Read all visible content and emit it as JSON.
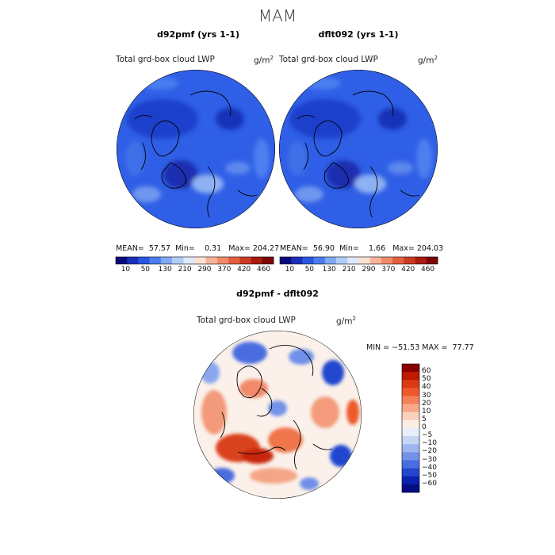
{
  "figure": {
    "season": "MAM"
  },
  "panels": [
    {
      "title": "d92pmf (yrs 1-1)",
      "field": "Total grd-box cloud LWP",
      "units": "g/m",
      "units_exp": "2",
      "mean_label": "MEAN=",
      "mean": "57.57",
      "min_label": "Min=",
      "min": "0.31",
      "max_label": "Max=",
      "max": "204.27"
    },
    {
      "title": "dflt092 (yrs 1-1)",
      "field": "Total grd-box cloud LWP",
      "units": "g/m",
      "units_exp": "2",
      "mean_label": "MEAN=",
      "mean": "56.90",
      "min_label": "Min=",
      "min": "1.66",
      "max_label": "Max=",
      "max": "204.03"
    }
  ],
  "diff_panel": {
    "title": "d92pmf - dflt092",
    "field": "Total grd-box cloud LWP",
    "units": "g/m",
    "units_exp": "2",
    "minmax": "MIN = −51.53 MAX =  77.77"
  },
  "colorbars": {
    "abs_levels": [
      "10",
      "50",
      "130",
      "210",
      "290",
      "370",
      "420",
      "460"
    ],
    "abs_colors": [
      "#0a0a80",
      "#1a2fb8",
      "#2a55e0",
      "#4a7ef0",
      "#7fa8f5",
      "#b3cdf9",
      "#dfe9fb",
      "#fbe1d3",
      "#f7b49a",
      "#f08a68",
      "#e45f3f",
      "#cc3a22",
      "#a81a10",
      "#7a0606"
    ],
    "diff_levels": [
      "60",
      "50",
      "40",
      "30",
      "20",
      "10",
      "5",
      "0",
      "−5",
      "−10",
      "−20",
      "−30",
      "−40",
      "−50",
      "−60"
    ],
    "diff_colors": [
      "#8a0000",
      "#c01a00",
      "#dc3a12",
      "#ec5a2c",
      "#f5805a",
      "#f9a989",
      "#fcd1bc",
      "#fdeee4",
      "#e9eefb",
      "#c6d4f6",
      "#9eb6f0",
      "#7393e8",
      "#4a6de0",
      "#2446cf",
      "#0b22b0",
      "#040e82"
    ]
  },
  "chart_data": [
    {
      "type": "heatmap",
      "title": "d92pmf (yrs 1-1)",
      "projection": "north polar stereographic",
      "variable": "Total grd-box cloud LWP",
      "units": "g/m^2",
      "stats": {
        "mean": 57.57,
        "min": 0.31,
        "max": 204.27
      },
      "contour_levels": [
        10,
        50,
        130,
        210,
        290,
        370,
        420,
        460
      ]
    },
    {
      "type": "heatmap",
      "title": "dflt092 (yrs 1-1)",
      "projection": "north polar stereographic",
      "variable": "Total grd-box cloud LWP",
      "units": "g/m^2",
      "stats": {
        "mean": 56.9,
        "min": 1.66,
        "max": 204.03
      },
      "contour_levels": [
        10,
        50,
        130,
        210,
        290,
        370,
        420,
        460
      ]
    },
    {
      "type": "heatmap",
      "title": "d92pmf - dflt092",
      "projection": "north polar stereographic",
      "variable": "Total grd-box cloud LWP",
      "units": "g/m^2",
      "stats": {
        "min": -51.53,
        "max": 77.77
      },
      "contour_levels": [
        -60,
        -50,
        -40,
        -30,
        -20,
        -10,
        -5,
        0,
        5,
        10,
        20,
        30,
        40,
        50,
        60
      ]
    }
  ]
}
